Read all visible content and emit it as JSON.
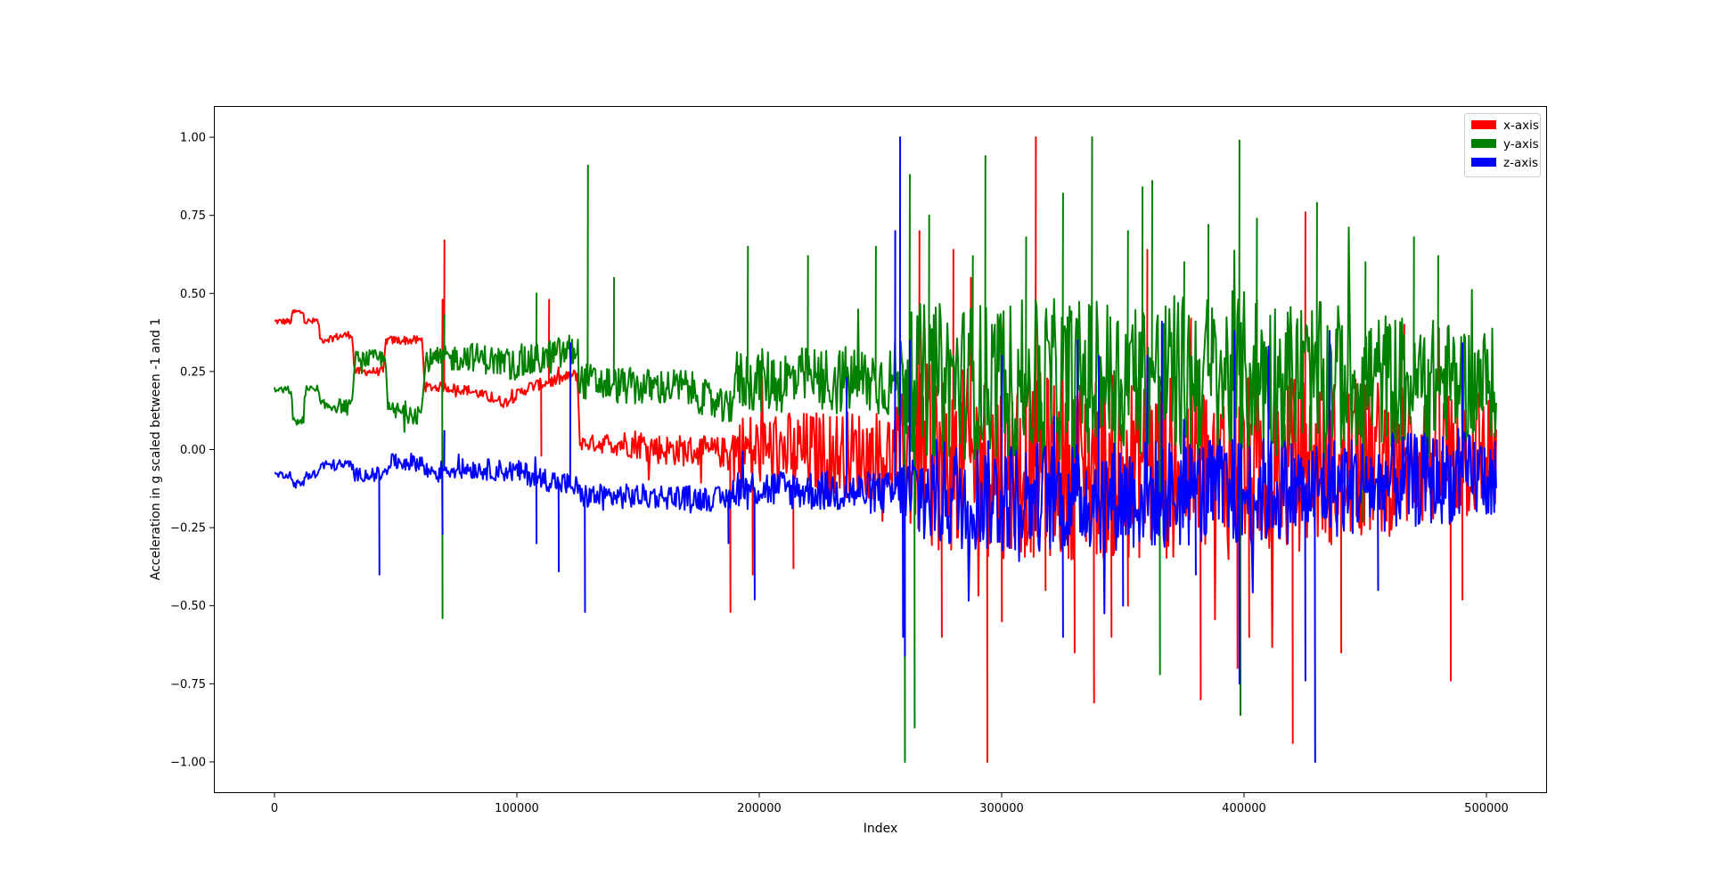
{
  "chart_data": {
    "type": "line",
    "title": "",
    "xlabel": "Index",
    "ylabel": "Acceleration in g scaled between -1 and 1",
    "xlim": [
      -25000,
      525000
    ],
    "ylim": [
      -1.1,
      1.1
    ],
    "xticks": [
      0,
      100000,
      200000,
      300000,
      400000,
      500000
    ],
    "xtick_labels": [
      "0",
      "100000",
      "200000",
      "300000",
      "400000",
      "500000"
    ],
    "yticks": [
      1.0,
      0.75,
      0.5,
      0.25,
      0.0,
      -0.25,
      -0.5,
      -0.75,
      -1.0
    ],
    "ytick_labels": [
      "1.00",
      "0.75",
      "0.50",
      "0.25",
      "0.00",
      "−0.25",
      "−0.50",
      "−0.75",
      "−1.00"
    ],
    "grid": false,
    "legend_position": "top-right",
    "series": [
      {
        "name": "x-axis",
        "color": "#ff0000",
        "profile": [
          [
            0,
            0.41
          ],
          [
            7000,
            0.41
          ],
          [
            7500,
            0.44
          ],
          [
            12000,
            0.44
          ],
          [
            12500,
            0.41
          ],
          [
            18000,
            0.41
          ],
          [
            19000,
            0.35
          ],
          [
            25000,
            0.36
          ],
          [
            32000,
            0.37
          ],
          [
            33000,
            0.25
          ],
          [
            45000,
            0.25
          ],
          [
            46000,
            0.35
          ],
          [
            61000,
            0.35
          ],
          [
            62000,
            0.2
          ],
          [
            70000,
            0.2
          ],
          [
            80000,
            0.19
          ],
          [
            95000,
            0.15
          ],
          [
            105000,
            0.2
          ],
          [
            125000,
            0.24
          ],
          [
            126000,
            0.02
          ],
          [
            150000,
            0.02
          ],
          [
            160000,
            0.0
          ],
          [
            187000,
            -0.01
          ],
          [
            190000,
            0.0
          ],
          [
            260000,
            -0.02
          ],
          [
            300000,
            -0.05
          ],
          [
            400000,
            -0.06
          ],
          [
            504000,
            0.0
          ]
        ],
        "envelope": [
          [
            0,
            0.01
          ],
          [
            125000,
            0.02
          ],
          [
            150000,
            0.05
          ],
          [
            186000,
            0.05
          ],
          [
            190000,
            0.12
          ],
          [
            255000,
            0.15
          ],
          [
            265000,
            0.3
          ],
          [
            400000,
            0.3
          ],
          [
            504000,
            0.22
          ]
        ],
        "spikes": [
          [
            70000,
            0.67
          ],
          [
            69000,
            0.48
          ],
          [
            113000,
            0.48
          ],
          [
            110000,
            -0.02
          ],
          [
            188000,
            -0.52
          ],
          [
            197000,
            -0.4
          ],
          [
            214000,
            -0.38
          ],
          [
            266000,
            0.7
          ],
          [
            275000,
            -0.6
          ],
          [
            280000,
            0.64
          ],
          [
            287000,
            0.55
          ],
          [
            294000,
            -1.0
          ],
          [
            300000,
            -0.55
          ],
          [
            314000,
            1.0
          ],
          [
            318000,
            -0.45
          ],
          [
            330000,
            -0.65
          ],
          [
            338000,
            -0.81
          ],
          [
            345000,
            -0.6
          ],
          [
            352000,
            -0.5
          ],
          [
            360000,
            0.64
          ],
          [
            378000,
            0.42
          ],
          [
            382000,
            -0.8
          ],
          [
            397000,
            -0.7
          ],
          [
            402000,
            -0.6
          ],
          [
            405000,
            0.48
          ],
          [
            420000,
            -0.94
          ],
          [
            425000,
            0.76
          ],
          [
            440000,
            -0.65
          ],
          [
            466000,
            0.4
          ],
          [
            485000,
            -0.74
          ],
          [
            490000,
            -0.48
          ]
        ]
      },
      {
        "name": "y-axis",
        "color": "#008000",
        "profile": [
          [
            0,
            0.19
          ],
          [
            7000,
            0.19
          ],
          [
            7500,
            0.09
          ],
          [
            12000,
            0.09
          ],
          [
            12500,
            0.19
          ],
          [
            18000,
            0.19
          ],
          [
            19000,
            0.14
          ],
          [
            32000,
            0.14
          ],
          [
            33000,
            0.29
          ],
          [
            46000,
            0.29
          ],
          [
            47000,
            0.12
          ],
          [
            61000,
            0.12
          ],
          [
            62000,
            0.28
          ],
          [
            80000,
            0.3
          ],
          [
            100000,
            0.27
          ],
          [
            115000,
            0.3
          ],
          [
            125000,
            0.32
          ],
          [
            126000,
            0.22
          ],
          [
            150000,
            0.2
          ],
          [
            170000,
            0.2
          ],
          [
            187000,
            0.12
          ],
          [
            190000,
            0.22
          ],
          [
            260000,
            0.22
          ],
          [
            300000,
            0.22
          ],
          [
            400000,
            0.24
          ],
          [
            504000,
            0.21
          ]
        ],
        "envelope": [
          [
            0,
            0.01
          ],
          [
            62000,
            0.04
          ],
          [
            125000,
            0.06
          ],
          [
            186000,
            0.06
          ],
          [
            190000,
            0.1
          ],
          [
            255000,
            0.12
          ],
          [
            265000,
            0.25
          ],
          [
            400000,
            0.27
          ],
          [
            504000,
            0.18
          ]
        ],
        "spikes": [
          [
            69000,
            -0.54
          ],
          [
            70000,
            0.43
          ],
          [
            108000,
            0.5
          ],
          [
            129000,
            0.91
          ],
          [
            140000,
            0.55
          ],
          [
            195000,
            0.65
          ],
          [
            220000,
            0.62
          ],
          [
            248000,
            0.65
          ],
          [
            260000,
            -1.0
          ],
          [
            262000,
            0.88
          ],
          [
            264000,
            -0.89
          ],
          [
            270000,
            0.75
          ],
          [
            288000,
            0.62
          ],
          [
            293000,
            0.94
          ],
          [
            310000,
            0.68
          ],
          [
            325000,
            0.82
          ],
          [
            337000,
            1.0
          ],
          [
            352000,
            0.7
          ],
          [
            358000,
            0.84
          ],
          [
            362000,
            0.86
          ],
          [
            365000,
            -0.72
          ],
          [
            375000,
            0.6
          ],
          [
            385000,
            0.72
          ],
          [
            398000,
            0.99
          ],
          [
            398500,
            -0.85
          ],
          [
            405000,
            0.74
          ],
          [
            430000,
            0.79
          ],
          [
            450000,
            0.6
          ],
          [
            470000,
            0.68
          ],
          [
            480000,
            0.62
          ]
        ]
      },
      {
        "name": "z-axis",
        "color": "#0000ff",
        "profile": [
          [
            0,
            -0.08
          ],
          [
            7000,
            -0.08
          ],
          [
            7500,
            -0.11
          ],
          [
            12000,
            -0.11
          ],
          [
            12500,
            -0.08
          ],
          [
            18000,
            -0.08
          ],
          [
            19000,
            -0.05
          ],
          [
            32000,
            -0.05
          ],
          [
            33000,
            -0.08
          ],
          [
            46000,
            -0.08
          ],
          [
            47000,
            -0.04
          ],
          [
            61000,
            -0.04
          ],
          [
            62000,
            -0.07
          ],
          [
            80000,
            -0.06
          ],
          [
            100000,
            -0.07
          ],
          [
            115000,
            -0.1
          ],
          [
            125000,
            -0.12
          ],
          [
            126000,
            -0.15
          ],
          [
            160000,
            -0.15
          ],
          [
            187000,
            -0.16
          ],
          [
            190000,
            -0.12
          ],
          [
            250000,
            -0.14
          ],
          [
            300000,
            -0.15
          ],
          [
            400000,
            -0.14
          ],
          [
            504000,
            -0.08
          ]
        ],
        "envelope": [
          [
            0,
            0.01
          ],
          [
            62000,
            0.03
          ],
          [
            125000,
            0.04
          ],
          [
            186000,
            0.04
          ],
          [
            190000,
            0.06
          ],
          [
            255000,
            0.07
          ],
          [
            265000,
            0.18
          ],
          [
            400000,
            0.18
          ],
          [
            504000,
            0.14
          ]
        ],
        "spikes": [
          [
            43000,
            -0.4
          ],
          [
            69000,
            -0.27
          ],
          [
            70000,
            0.06
          ],
          [
            108000,
            -0.3
          ],
          [
            117000,
            -0.39
          ],
          [
            122000,
            0.34
          ],
          [
            128000,
            -0.52
          ],
          [
            187000,
            -0.3
          ],
          [
            198000,
            -0.48
          ],
          [
            236000,
            0.23
          ],
          [
            256000,
            0.7
          ],
          [
            258000,
            1.0
          ],
          [
            259000,
            -0.6
          ],
          [
            260000,
            -0.66
          ],
          [
            262000,
            0.35
          ],
          [
            300000,
            0.3
          ],
          [
            325000,
            -0.6
          ],
          [
            331000,
            0.35
          ],
          [
            340000,
            0.3
          ],
          [
            350000,
            -0.5
          ],
          [
            360000,
            0.3
          ],
          [
            366000,
            0.41
          ],
          [
            380000,
            -0.4
          ],
          [
            396000,
            0.38
          ],
          [
            398000,
            -0.75
          ],
          [
            410000,
            0.33
          ],
          [
            425000,
            -0.74
          ],
          [
            429000,
            -1.0
          ],
          [
            435000,
            0.38
          ],
          [
            455000,
            -0.45
          ],
          [
            490000,
            0.34
          ]
        ]
      }
    ]
  }
}
